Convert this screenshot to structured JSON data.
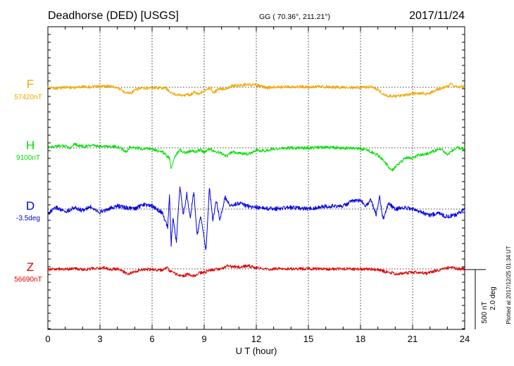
{
  "header": {
    "station": "Deadhorse (DED)  [USGS]",
    "coords": "GG ( 70.36°, 211.21°)",
    "date": "2017/11/24"
  },
  "side_note": "Plotted at 2017/12/25 01:34  UT",
  "colors": {
    "F": "#f0a800",
    "H": "#00e000",
    "D": "#0000e0",
    "Z": "#e00000"
  },
  "chart_data": {
    "type": "line",
    "title": "Deadhorse (DED)  [USGS]",
    "xlabel": "U T (hour)",
    "xlim": [
      0,
      24
    ],
    "x_ticks": [
      "0",
      "3",
      "6",
      "9",
      "12",
      "15",
      "18",
      "21",
      "24"
    ],
    "grid": true,
    "scale": {
      "nT": "500 nT",
      "deg": "2.0 deg",
      "nT_per_scale_bar": 500,
      "deg_per_scale_bar": 2.0
    },
    "series": [
      {
        "name": "F",
        "baseline": "57420nT",
        "color": "#f0a800",
        "points": [
          [
            0,
            1
          ],
          [
            0.5,
            -8
          ],
          [
            1,
            2
          ],
          [
            1.5,
            -4
          ],
          [
            2,
            6
          ],
          [
            2.5,
            3
          ],
          [
            3,
            6
          ],
          [
            3.5,
            10
          ],
          [
            4,
            0
          ],
          [
            4.3,
            -32
          ],
          [
            4.6,
            -48
          ],
          [
            4.8,
            -45
          ],
          [
            5,
            -25
          ],
          [
            5.3,
            -10
          ],
          [
            5.7,
            -8
          ],
          [
            6,
            -2
          ],
          [
            6.4,
            -4
          ],
          [
            6.8,
            -8
          ],
          [
            7.0,
            -35
          ],
          [
            7.2,
            -55
          ],
          [
            7.5,
            -58
          ],
          [
            7.8,
            -72
          ],
          [
            8.0,
            -55
          ],
          [
            8.2,
            -65
          ],
          [
            8.4,
            -40
          ],
          [
            8.7,
            -52
          ],
          [
            8.9,
            -38
          ],
          [
            9.2,
            -20
          ],
          [
            9.4,
            -5
          ],
          [
            9.5,
            -48
          ],
          [
            9.8,
            -18
          ],
          [
            10.2,
            -12
          ],
          [
            10.6,
            12
          ],
          [
            11.0,
            15
          ],
          [
            11.5,
            25
          ],
          [
            12.0,
            18
          ],
          [
            12.3,
            8
          ],
          [
            12.6,
            -5
          ],
          [
            13,
            1
          ],
          [
            14,
            5
          ],
          [
            15,
            3
          ],
          [
            16,
            3
          ],
          [
            17,
            -1
          ],
          [
            18,
            -2
          ],
          [
            18.6,
            0
          ],
          [
            19.0,
            -20
          ],
          [
            19.3,
            -58
          ],
          [
            19.6,
            -72
          ],
          [
            20.0,
            -75
          ],
          [
            20.5,
            -70
          ],
          [
            21.0,
            -52
          ],
          [
            21.5,
            -48
          ],
          [
            21.8,
            -58
          ],
          [
            22.0,
            -48
          ],
          [
            22.3,
            -28
          ],
          [
            22.6,
            -12
          ],
          [
            23.0,
            10
          ],
          [
            23.2,
            25
          ],
          [
            23.5,
            5
          ],
          [
            24,
            5
          ]
        ]
      },
      {
        "name": "H",
        "baseline": "9100nT",
        "color": "#00e000",
        "points": [
          [
            0,
            8
          ],
          [
            0.5,
            12
          ],
          [
            1,
            18
          ],
          [
            1.3,
            -3
          ],
          [
            1.5,
            35
          ],
          [
            1.8,
            18
          ],
          [
            2.1,
            10
          ],
          [
            2.5,
            20
          ],
          [
            2.9,
            12
          ],
          [
            3.3,
            15
          ],
          [
            3.6,
            10
          ],
          [
            4.0,
            8
          ],
          [
            4.3,
            -10
          ],
          [
            4.5,
            -35
          ],
          [
            4.7,
            5
          ],
          [
            5.0,
            0
          ],
          [
            5.4,
            -8
          ],
          [
            5.7,
            -5
          ],
          [
            6.0,
            -5
          ],
          [
            6.3,
            -25
          ],
          [
            6.6,
            -35
          ],
          [
            6.8,
            -60
          ],
          [
            7.0,
            -90
          ],
          [
            7.1,
            -180
          ],
          [
            7.3,
            -70
          ],
          [
            7.6,
            -20
          ],
          [
            7.9,
            -45
          ],
          [
            8.2,
            -25
          ],
          [
            8.5,
            -35
          ],
          [
            8.8,
            -15
          ],
          [
            9.0,
            -40
          ],
          [
            9.3,
            -10
          ],
          [
            9.6,
            -30
          ],
          [
            10.0,
            -45
          ],
          [
            10.3,
            -70
          ],
          [
            10.6,
            -35
          ],
          [
            11.0,
            -45
          ],
          [
            11.5,
            -55
          ],
          [
            12.0,
            -20
          ],
          [
            12.5,
            -25
          ],
          [
            13,
            -8
          ],
          [
            14,
            -2
          ],
          [
            15,
            0
          ],
          [
            16,
            5
          ],
          [
            17,
            -2
          ],
          [
            18,
            -5
          ],
          [
            18.5,
            -25
          ],
          [
            19.0,
            -60
          ],
          [
            19.3,
            -100
          ],
          [
            19.5,
            -140
          ],
          [
            19.8,
            -190
          ],
          [
            20.0,
            -160
          ],
          [
            20.3,
            -120
          ],
          [
            20.6,
            -80
          ],
          [
            21.0,
            -85
          ],
          [
            21.4,
            -60
          ],
          [
            21.8,
            -50
          ],
          [
            22.2,
            -30
          ],
          [
            22.6,
            -10
          ],
          [
            23.0,
            -60
          ],
          [
            23.3,
            -20
          ],
          [
            23.6,
            0
          ],
          [
            24,
            -5
          ]
        ]
      },
      {
        "name": "D",
        "baseline": "-3.5deg",
        "color": "#0000e0",
        "points": [
          [
            0,
            -0.15
          ],
          [
            0.5,
            0.05
          ],
          [
            1,
            -0.1
          ],
          [
            1.5,
            0.05
          ],
          [
            2,
            -0.05
          ],
          [
            2.5,
            0.08
          ],
          [
            3,
            -0.1
          ],
          [
            3.5,
            0.0
          ],
          [
            4,
            0.1
          ],
          [
            4.5,
            0.05
          ],
          [
            5,
            0.0
          ],
          [
            5.5,
            0.15
          ],
          [
            6,
            0.1
          ],
          [
            6.3,
            0.0
          ],
          [
            6.6,
            -0.15
          ],
          [
            6.9,
            -0.6
          ],
          [
            7.0,
            0.5
          ],
          [
            7.1,
            -1.2
          ],
          [
            7.2,
            -0.3
          ],
          [
            7.4,
            -1.1
          ],
          [
            7.6,
            0.8
          ],
          [
            7.8,
            -0.2
          ],
          [
            8.0,
            0.5
          ],
          [
            8.2,
            -0.3
          ],
          [
            8.4,
            0.6
          ],
          [
            8.6,
            -0.9
          ],
          [
            8.8,
            -0.2
          ],
          [
            9.0,
            -1.0
          ],
          [
            9.1,
            -1.4
          ],
          [
            9.3,
            0.7
          ],
          [
            9.5,
            -0.4
          ],
          [
            9.7,
            0.3
          ],
          [
            9.9,
            -0.4
          ],
          [
            10.2,
            0.4
          ],
          [
            10.5,
            0.1
          ],
          [
            11.0,
            0.2
          ],
          [
            11.5,
            0.1
          ],
          [
            12,
            0.05
          ],
          [
            13,
            0.0
          ],
          [
            14,
            0.05
          ],
          [
            15,
            0.0
          ],
          [
            16,
            0.1
          ],
          [
            17,
            0.1
          ],
          [
            17.5,
            0.25
          ],
          [
            18,
            0.3
          ],
          [
            18.3,
            0.1
          ],
          [
            18.6,
            0.3
          ],
          [
            18.9,
            -0.2
          ],
          [
            19.1,
            0.4
          ],
          [
            19.3,
            -0.35
          ],
          [
            19.6,
            0.2
          ],
          [
            20,
            0.0
          ],
          [
            20.5,
            0.05
          ],
          [
            21,
            0.0
          ],
          [
            21.5,
            -0.1
          ],
          [
            22,
            -0.2
          ],
          [
            22.5,
            -0.15
          ],
          [
            23,
            -0.25
          ],
          [
            23.5,
            -0.2
          ],
          [
            24,
            0.0
          ]
        ]
      },
      {
        "name": "Z",
        "baseline": "56690nT",
        "color": "#e00000",
        "points": [
          [
            0,
            -10
          ],
          [
            0.5,
            2
          ],
          [
            1,
            -5
          ],
          [
            1.5,
            4
          ],
          [
            2,
            -8
          ],
          [
            2.5,
            2
          ],
          [
            3,
            5
          ],
          [
            3.3,
            10
          ],
          [
            3.6,
            -5
          ],
          [
            4,
            2
          ],
          [
            4.3,
            -20
          ],
          [
            4.6,
            -40
          ],
          [
            4.8,
            -35
          ],
          [
            5.2,
            -15
          ],
          [
            5.6,
            -5
          ],
          [
            6.0,
            -4
          ],
          [
            6.3,
            -8
          ],
          [
            6.6,
            -10
          ],
          [
            6.9,
            10
          ],
          [
            7.0,
            -20
          ],
          [
            7.2,
            -30
          ],
          [
            7.5,
            -50
          ],
          [
            7.8,
            -60
          ],
          [
            8.1,
            -42
          ],
          [
            8.4,
            -60
          ],
          [
            8.7,
            -35
          ],
          [
            9.0,
            -28
          ],
          [
            9.3,
            -15
          ],
          [
            9.6,
            -5
          ],
          [
            10.0,
            -2
          ],
          [
            10.3,
            25
          ],
          [
            10.6,
            20
          ],
          [
            11.0,
            15
          ],
          [
            11.5,
            25
          ],
          [
            12.0,
            10
          ],
          [
            12.5,
            -2
          ],
          [
            13,
            0
          ],
          [
            14,
            0
          ],
          [
            15,
            0
          ],
          [
            16,
            0
          ],
          [
            17,
            0
          ],
          [
            18,
            -3
          ],
          [
            18.6,
            -3
          ],
          [
            19.0,
            -5
          ],
          [
            19.3,
            -20
          ],
          [
            19.6,
            -30
          ],
          [
            20.0,
            -40
          ],
          [
            20.5,
            -35
          ],
          [
            21.0,
            -30
          ],
          [
            21.5,
            -30
          ],
          [
            21.8,
            -38
          ],
          [
            22.2,
            -20
          ],
          [
            22.6,
            -8
          ],
          [
            23.0,
            5
          ],
          [
            23.2,
            15
          ],
          [
            23.5,
            0
          ],
          [
            24,
            0
          ]
        ]
      }
    ]
  }
}
